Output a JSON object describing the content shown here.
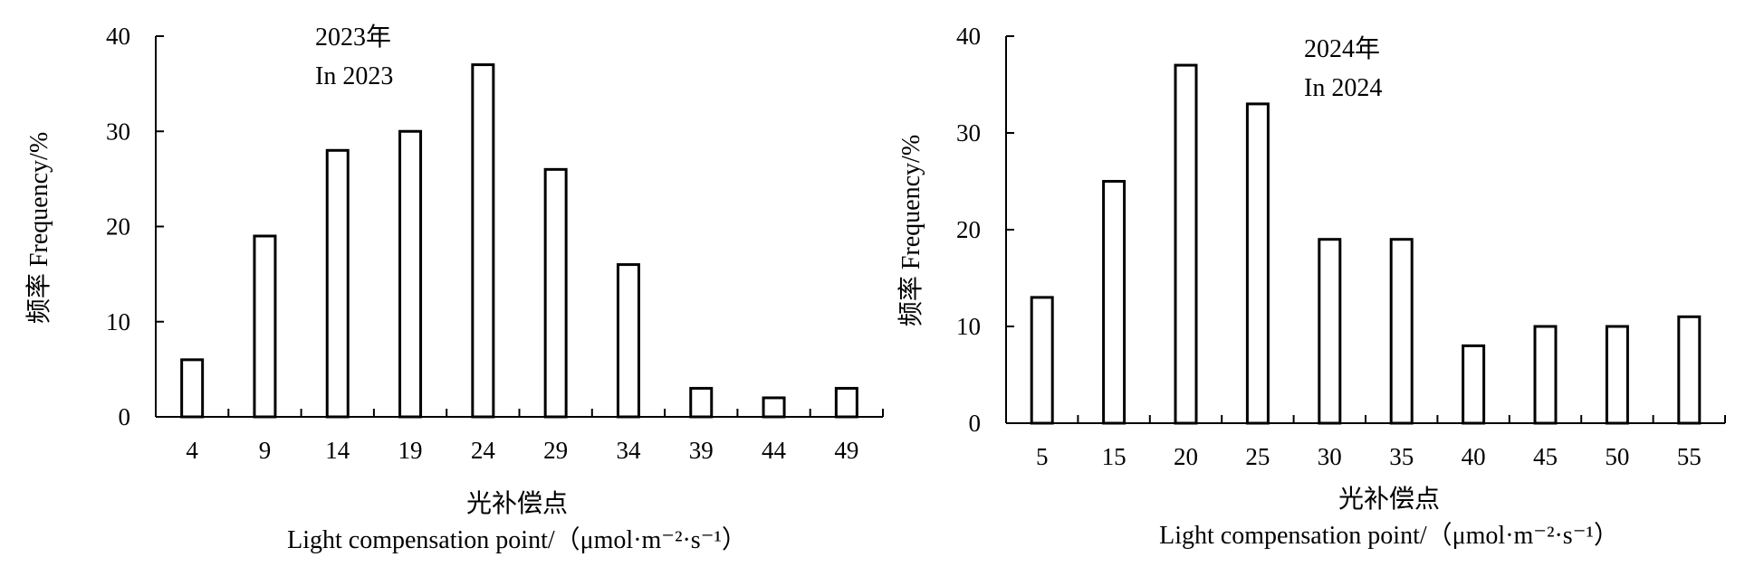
{
  "chart_data": [
    {
      "type": "bar",
      "annotation": [
        "2023年",
        "In 2023"
      ],
      "ylabel": "频率 Frequency/%",
      "xlabel": [
        "光补偿点",
        "Light compensation point/（μmol·m⁻²·s⁻¹）"
      ],
      "ylim": [
        0,
        40
      ],
      "yticks": [
        0,
        10,
        20,
        30,
        40
      ],
      "categories": [
        "4",
        "9",
        "14",
        "19",
        "24",
        "29",
        "34",
        "39",
        "44",
        "49"
      ],
      "values": [
        6,
        19,
        28,
        30,
        37,
        26,
        16,
        3,
        2,
        3
      ],
      "grid": false,
      "bar_fill": "#ffffff",
      "bar_stroke": "#000000"
    },
    {
      "type": "bar",
      "annotation": [
        "2024年",
        "In 2024"
      ],
      "ylabel": "频率 Frequency/%",
      "xlabel": [
        "光补偿点",
        "Light compensation point/（μmol·m⁻²·s⁻¹）"
      ],
      "ylim": [
        0,
        40
      ],
      "yticks": [
        0,
        10,
        20,
        30,
        40
      ],
      "categories": [
        "5",
        "15",
        "20",
        "25",
        "30",
        "35",
        "40",
        "45",
        "50",
        "55"
      ],
      "values": [
        13,
        25,
        37,
        33,
        19,
        19,
        8,
        10,
        10,
        11
      ],
      "grid": false,
      "bar_fill": "#ffffff",
      "bar_stroke": "#000000"
    }
  ]
}
